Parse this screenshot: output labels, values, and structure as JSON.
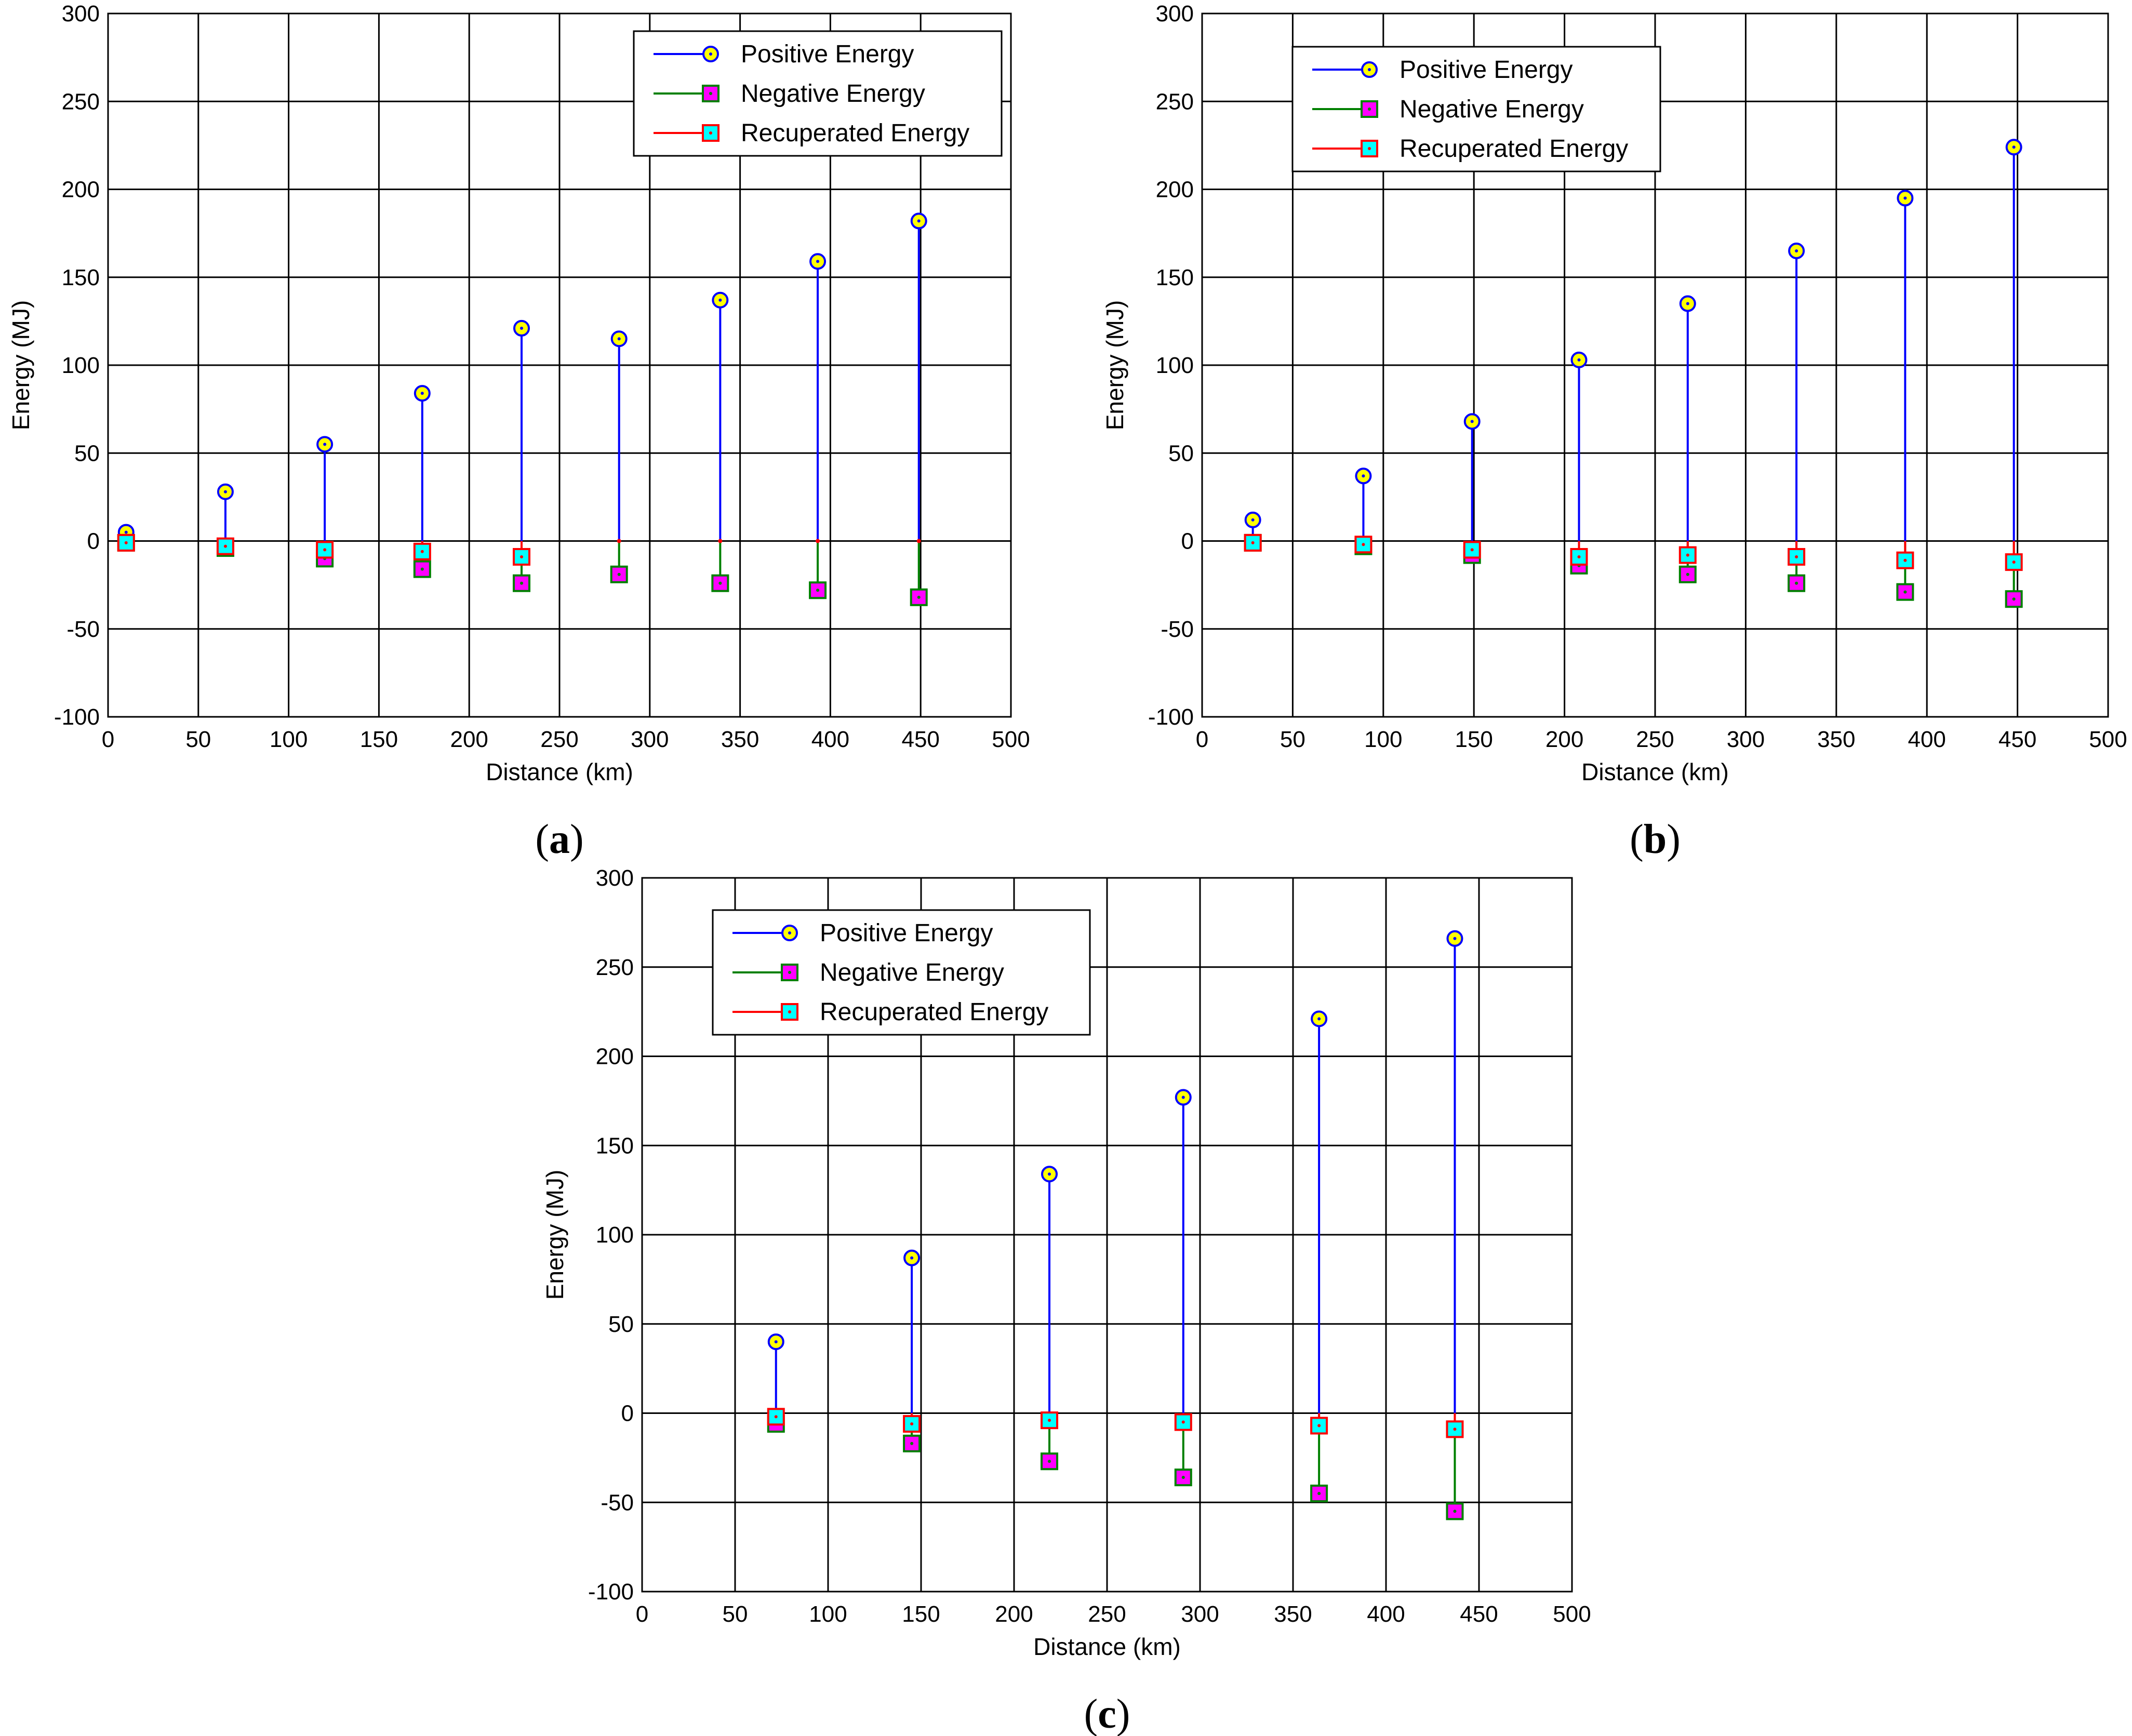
{
  "figure": {
    "colors": {
      "positive_line": "#0000ff",
      "positive_marker_fill": "#ffff00",
      "positive_marker_edge": "#0000ff",
      "negative_line": "#008000",
      "negative_marker_fill": "#ff00ff",
      "negative_marker_edge": "#008000",
      "recuperated_line": "#ff0000",
      "recuperated_marker_fill": "#00ffff",
      "recuperated_marker_edge": "#ff0000",
      "grid": "#000000",
      "axes": "#000000"
    }
  },
  "chart_data": [
    {
      "id": "a",
      "type": "stem",
      "caption": {
        "open": "(",
        "letter": "a",
        "close": ")"
      },
      "xlabel": "Distance (km)",
      "ylabel": "Energy (MJ)",
      "xlim": [
        0,
        500
      ],
      "ylim": [
        -100,
        300
      ],
      "xticks": [
        0,
        50,
        100,
        150,
        200,
        250,
        300,
        350,
        400,
        450,
        500
      ],
      "yticks": [
        -100,
        -50,
        0,
        50,
        100,
        150,
        200,
        250,
        300
      ],
      "grid": true,
      "legend_position": "top-right",
      "x": [
        10,
        65,
        120,
        174,
        229,
        283,
        339,
        393,
        449
      ],
      "series": [
        {
          "name": "Positive Energy",
          "values": [
            5,
            28,
            55,
            84,
            121,
            115,
            137,
            159,
            182
          ]
        },
        {
          "name": "Negative Energy",
          "values": [
            -1,
            -4,
            -10,
            -16,
            -24,
            -19,
            -24,
            -28,
            -32
          ]
        },
        {
          "name": "Recuperated Energy",
          "values": [
            -1,
            -3,
            -5,
            -6,
            -9,
            0,
            0,
            0,
            0
          ]
        }
      ]
    },
    {
      "id": "b",
      "type": "stem",
      "caption": {
        "open": "(",
        "letter": "b",
        "close": ")"
      },
      "xlabel": "Distance (km)",
      "ylabel": "Energy (MJ)",
      "xlim": [
        0,
        500
      ],
      "ylim": [
        -100,
        300
      ],
      "xticks": [
        0,
        50,
        100,
        150,
        200,
        250,
        300,
        350,
        400,
        450,
        500
      ],
      "yticks": [
        -100,
        -50,
        0,
        50,
        100,
        150,
        200,
        250,
        300
      ],
      "grid": true,
      "legend_position": "top-center",
      "x": [
        28,
        89,
        149,
        208,
        268,
        328,
        388,
        448
      ],
      "series": [
        {
          "name": "Positive Energy",
          "values": [
            12,
            37,
            68,
            103,
            135,
            165,
            195,
            224
          ]
        },
        {
          "name": "Negative Energy",
          "values": [
            -1,
            -3,
            -8,
            -14,
            -19,
            -24,
            -29,
            -33
          ]
        },
        {
          "name": "Recuperated Energy",
          "values": [
            -1,
            -2,
            -5,
            -9,
            -8,
            -9,
            -11,
            -12
          ]
        }
      ]
    },
    {
      "id": "c",
      "type": "stem",
      "caption": {
        "open": "(",
        "letter": "c",
        "close": ")"
      },
      "xlabel": "Distance (km)",
      "ylabel": "Energy (MJ)",
      "xlim": [
        0,
        500
      ],
      "ylim": [
        -100,
        300
      ],
      "xticks": [
        0,
        50,
        100,
        150,
        200,
        250,
        300,
        350,
        400,
        450,
        500
      ],
      "yticks": [
        -100,
        -50,
        0,
        50,
        100,
        150,
        200,
        250,
        300
      ],
      "grid": true,
      "legend_position": "top-left",
      "x": [
        72,
        145,
        219,
        291,
        364,
        437
      ],
      "series": [
        {
          "name": "Positive Energy",
          "values": [
            40,
            87,
            134,
            177,
            221,
            266
          ]
        },
        {
          "name": "Negative Energy",
          "values": [
            -6,
            -17,
            -27,
            -36,
            -45,
            -55
          ]
        },
        {
          "name": "Recuperated Energy",
          "values": [
            -2,
            -6,
            -4,
            -5,
            -7,
            -9
          ]
        }
      ]
    }
  ]
}
